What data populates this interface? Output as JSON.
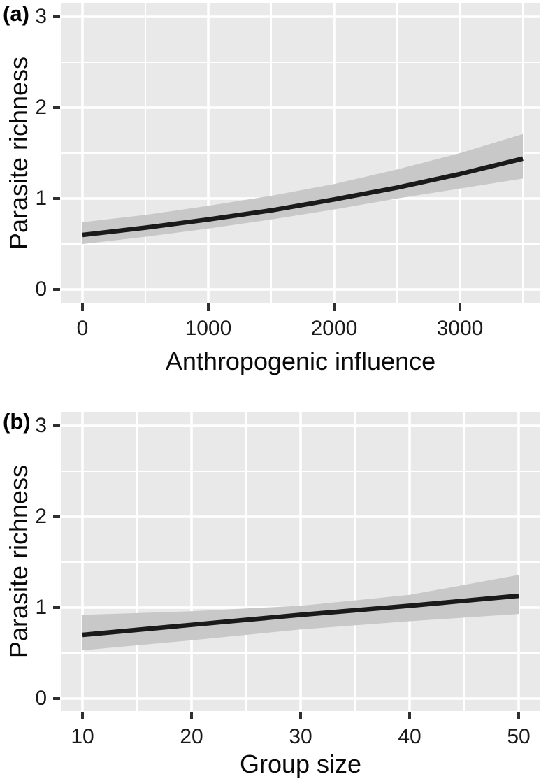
{
  "styles": {
    "page_background": "#ffffff",
    "panel_background": "#e9e9e9",
    "grid_color": "#ffffff",
    "ribbon_color": "#c8c8c8",
    "line_color": "#1a1a1a",
    "tick_mark_color": "#2f2f2f",
    "tick_label_color": "#1a1a1a",
    "title_color": "#0a0a0a"
  },
  "chart_data": [
    {
      "type": "line",
      "panel_label": "(a)",
      "xlabel": "Anthropogenic influence",
      "ylabel": "Parasite richness",
      "legend_position": "none",
      "grid": "major and minor white gridlines on gray panel",
      "xlim": [
        -172,
        3633
      ],
      "ylim": [
        -0.15,
        3.15
      ],
      "x_ticks": {
        "values": [
          0,
          1000,
          2000,
          3000
        ],
        "labels": [
          "0",
          "1000",
          "2000",
          "3000"
        ]
      },
      "y_ticks": {
        "values": [
          0,
          1,
          2,
          3
        ],
        "labels": [
          "0",
          "1",
          "2",
          "3"
        ]
      },
      "series": [
        {
          "name": "fitted parasite richness",
          "x": [
            0,
            500,
            1000,
            1500,
            2000,
            2500,
            3000,
            3500
          ],
          "y": [
            0.6,
            0.68,
            0.77,
            0.87,
            0.99,
            1.12,
            1.27,
            1.44
          ]
        }
      ],
      "ribbon": {
        "name": "confidence band",
        "x": [
          0,
          500,
          1000,
          1500,
          2000,
          2500,
          3000,
          3500
        ],
        "upper": [
          0.74,
          0.82,
          0.92,
          1.03,
          1.16,
          1.32,
          1.5,
          1.71
        ],
        "lower": [
          0.5,
          0.58,
          0.67,
          0.77,
          0.88,
          1.0,
          1.11,
          1.22
        ]
      }
    },
    {
      "type": "line",
      "panel_label": "(b)",
      "xlabel": "Group size",
      "ylabel": "Parasite richness",
      "legend_position": "none",
      "grid": "major and minor white gridlines on gray panel",
      "xlim": [
        8,
        51.9
      ],
      "ylim": [
        -0.14,
        3.15
      ],
      "x_ticks": {
        "values": [
          10,
          20,
          30,
          40,
          50
        ],
        "labels": [
          "10",
          "20",
          "30",
          "40",
          "50"
        ]
      },
      "y_ticks": {
        "values": [
          0,
          1,
          2,
          3
        ],
        "labels": [
          "0",
          "1",
          "2",
          "3"
        ]
      },
      "series": [
        {
          "name": "fitted parasite richness",
          "x": [
            10,
            20,
            30,
            40,
            50
          ],
          "y": [
            0.7,
            0.81,
            0.92,
            1.02,
            1.13
          ]
        }
      ],
      "ribbon": {
        "name": "confidence band",
        "x": [
          10,
          20,
          30,
          40,
          50
        ],
        "upper": [
          0.92,
          0.96,
          1.02,
          1.14,
          1.36
        ],
        "lower": [
          0.53,
          0.64,
          0.76,
          0.85,
          0.93
        ]
      }
    }
  ]
}
